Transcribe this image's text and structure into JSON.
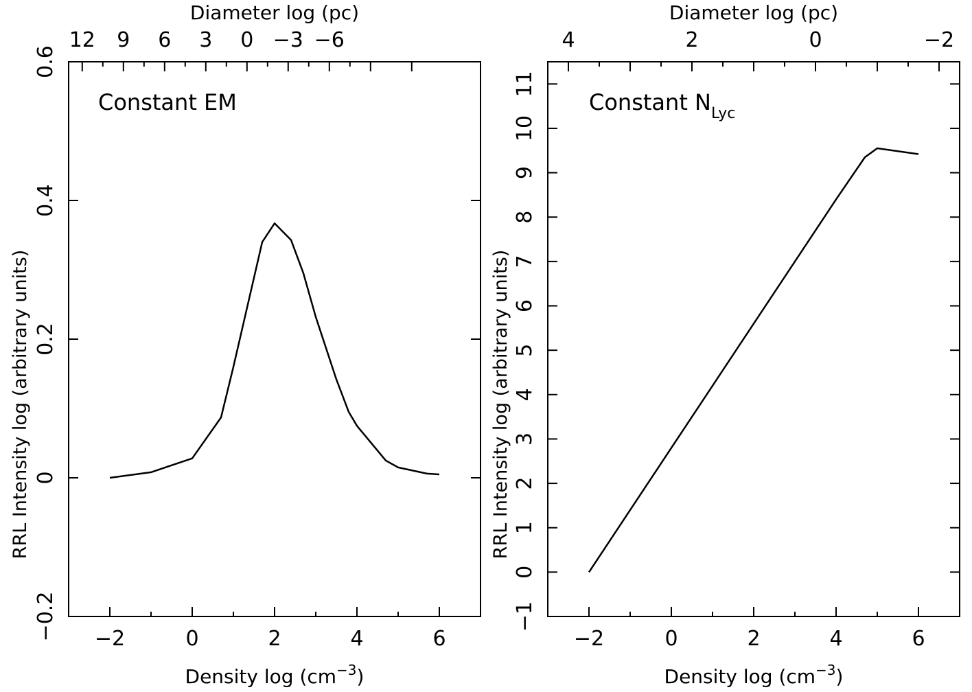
{
  "figure": {
    "line_color": "#000000",
    "background": "#ffffff"
  },
  "chart_data": [
    {
      "type": "line",
      "title": "",
      "annotation": {
        "text": "Constant EM",
        "subscript": ""
      },
      "xlabel": {
        "text": "Density log (cm",
        "superscript": "−3",
        "suffix": ")"
      },
      "ylabel": "RRL Intensity log (arbitrary units)",
      "top_xlabel": "Diameter log (pc)",
      "xlim": [
        -3,
        7
      ],
      "ylim": [
        -0.2,
        0.6
      ],
      "x_ticks": [
        -2,
        0,
        2,
        4,
        6
      ],
      "x_tick_labels": [
        "−2",
        "0",
        "2",
        "4",
        "6"
      ],
      "x_minor_ticks": [
        -3,
        -1,
        1,
        3,
        5,
        7
      ],
      "y_ticks": [
        -0.2,
        0,
        0.2,
        0.4,
        0.6
      ],
      "y_tick_labels": [
        "−0.2",
        "0",
        "0.2",
        "0.4",
        "0.6"
      ],
      "y_minor_ticks": [],
      "top_ticks_at_x": [
        -2.67,
        -1.67,
        -0.67,
        0.33,
        1.33,
        2.33,
        3.33,
        4.33,
        5.33
      ],
      "top_tick_labels": [
        "12",
        "9",
        "6",
        "3",
        "0",
        "−3",
        "−6"
      ],
      "top_label_at_x": [
        -2.67,
        -1.67,
        -0.67,
        0.33,
        1.33,
        2.33,
        3.33
      ],
      "top_minor_at_x": [
        -2.17,
        -1.17,
        -0.17,
        0.83,
        1.83,
        2.83,
        3.83
      ],
      "grid": false,
      "series": [
        {
          "x": [
            -2,
            -1,
            0,
            0.7,
            1.0,
            1.7,
            2.0,
            2.4,
            2.7,
            3.0,
            3.5,
            3.8,
            4.0,
            4.7,
            5.0,
            5.7,
            6.0
          ],
          "y": [
            0.0,
            0.008,
            0.028,
            0.087,
            0.16,
            0.34,
            0.367,
            0.343,
            0.295,
            0.232,
            0.142,
            0.095,
            0.075,
            0.025,
            0.015,
            0.006,
            0.005
          ]
        }
      ]
    },
    {
      "type": "line",
      "title": "",
      "annotation": {
        "text": "Constant N",
        "subscript": "Lyc"
      },
      "xlabel": {
        "text": "Density log (cm",
        "superscript": "−3",
        "suffix": ")"
      },
      "ylabel": "RRL Intensity log (arbitrary units)",
      "top_xlabel": "Diameter log (pc)",
      "xlim": [
        -3,
        7
      ],
      "ylim": [
        -1,
        11.5
      ],
      "x_ticks": [
        -2,
        0,
        2,
        4,
        6
      ],
      "x_tick_labels": [
        "−2",
        "0",
        "2",
        "4",
        "6"
      ],
      "x_minor_ticks": [
        -3,
        -1,
        1,
        3,
        5,
        7
      ],
      "y_ticks": [
        -1,
        0,
        1,
        2,
        3,
        4,
        5,
        6,
        7,
        8,
        9,
        10,
        11
      ],
      "y_tick_labels": [
        "−1",
        "0",
        "1",
        "2",
        "3",
        "4",
        "5",
        "6",
        "7",
        "8",
        "9",
        "10",
        "11"
      ],
      "y_minor_ticks": [],
      "top_ticks_at_x": [
        -2.5,
        -1.0,
        0.5,
        2.0,
        3.5,
        5.0,
        6.5
      ],
      "top_tick_labels": [
        "4",
        "2",
        "0",
        "−2"
      ],
      "top_label_at_x": [
        -2.5,
        0.5,
        3.5,
        6.5
      ],
      "top_minor_at_x": [
        -1.75,
        -0.25,
        1.25,
        2.75,
        4.25,
        5.75
      ],
      "grid": false,
      "series": [
        {
          "x": [
            -2,
            4.0,
            4.7,
            5.0,
            6.0
          ],
          "y": [
            0.0,
            8.4,
            9.35,
            9.55,
            9.42
          ]
        }
      ]
    }
  ]
}
